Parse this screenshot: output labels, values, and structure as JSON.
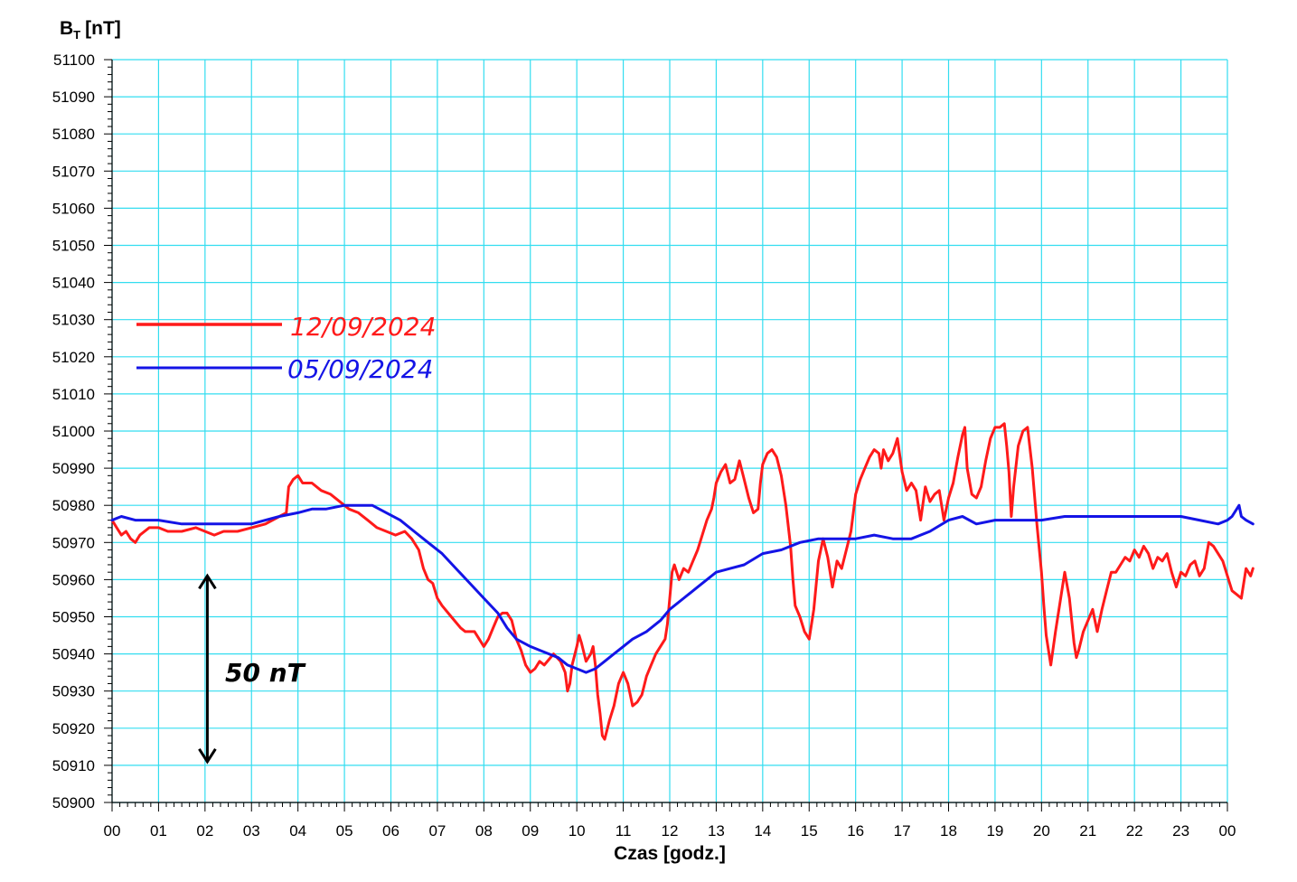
{
  "chart_data": {
    "type": "line",
    "ylabel": "B",
    "ylabel_sub": "T",
    "ylabel_unit": "[nT]",
    "xlabel": "Czas [godz.]",
    "ylim": [
      50900,
      51100
    ],
    "xlim": [
      0,
      24
    ],
    "x_ticks": [
      "00",
      "01",
      "02",
      "03",
      "04",
      "05",
      "06",
      "07",
      "08",
      "09",
      "10",
      "11",
      "12",
      "13",
      "14",
      "15",
      "16",
      "17",
      "18",
      "19",
      "20",
      "21",
      "22",
      "23",
      "00"
    ],
    "y_ticks": [
      50900,
      50910,
      50920,
      50930,
      50940,
      50950,
      50960,
      50970,
      50980,
      50990,
      51000,
      51010,
      51020,
      51030,
      51040,
      51050,
      51060,
      51070,
      51080,
      51090,
      51100
    ],
    "grid": true,
    "legend_position": "upper-left",
    "annotation": {
      "text": "50 nT",
      "y_from": 50911,
      "y_to": 50961,
      "x": 2.05
    },
    "series": [
      {
        "name": "12/09/2024",
        "color": "#ff1a1a",
        "points": [
          [
            0,
            50976
          ],
          [
            0.1,
            50974
          ],
          [
            0.2,
            50972
          ],
          [
            0.3,
            50973
          ],
          [
            0.4,
            50971
          ],
          [
            0.5,
            50970
          ],
          [
            0.6,
            50972
          ],
          [
            0.8,
            50974
          ],
          [
            1.0,
            50974
          ],
          [
            1.2,
            50973
          ],
          [
            1.5,
            50973
          ],
          [
            1.8,
            50974
          ],
          [
            2.0,
            50973
          ],
          [
            2.2,
            50972
          ],
          [
            2.4,
            50973
          ],
          [
            2.7,
            50973
          ],
          [
            3.0,
            50974
          ],
          [
            3.3,
            50975
          ],
          [
            3.6,
            50977
          ],
          [
            3.75,
            50978
          ],
          [
            3.8,
            50985
          ],
          [
            3.9,
            50987
          ],
          [
            4.0,
            50988
          ],
          [
            4.1,
            50986
          ],
          [
            4.3,
            50986
          ],
          [
            4.5,
            50984
          ],
          [
            4.7,
            50983
          ],
          [
            4.9,
            50981
          ],
          [
            5.1,
            50979
          ],
          [
            5.3,
            50978
          ],
          [
            5.5,
            50976
          ],
          [
            5.7,
            50974
          ],
          [
            5.9,
            50973
          ],
          [
            6.1,
            50972
          ],
          [
            6.3,
            50973
          ],
          [
            6.45,
            50971
          ],
          [
            6.6,
            50968
          ],
          [
            6.7,
            50963
          ],
          [
            6.8,
            50960
          ],
          [
            6.9,
            50959
          ],
          [
            7.0,
            50955
          ],
          [
            7.1,
            50953
          ],
          [
            7.3,
            50950
          ],
          [
            7.5,
            50947
          ],
          [
            7.6,
            50946
          ],
          [
            7.8,
            50946
          ],
          [
            7.9,
            50944
          ],
          [
            8.0,
            50942
          ],
          [
            8.1,
            50944
          ],
          [
            8.2,
            50947
          ],
          [
            8.3,
            50950
          ],
          [
            8.4,
            50951
          ],
          [
            8.5,
            50951
          ],
          [
            8.6,
            50949
          ],
          [
            8.7,
            50944
          ],
          [
            8.8,
            50941
          ],
          [
            8.9,
            50937
          ],
          [
            9.0,
            50935
          ],
          [
            9.1,
            50936
          ],
          [
            9.2,
            50938
          ],
          [
            9.3,
            50937
          ],
          [
            9.5,
            50940
          ],
          [
            9.65,
            50938
          ],
          [
            9.75,
            50935
          ],
          [
            9.8,
            50930
          ],
          [
            9.85,
            50932
          ],
          [
            9.9,
            50937
          ],
          [
            10.0,
            50942
          ],
          [
            10.05,
            50945
          ],
          [
            10.1,
            50943
          ],
          [
            10.2,
            50938
          ],
          [
            10.3,
            50940
          ],
          [
            10.35,
            50942
          ],
          [
            10.4,
            50937
          ],
          [
            10.45,
            50929
          ],
          [
            10.5,
            50924
          ],
          [
            10.55,
            50918
          ],
          [
            10.6,
            50917
          ],
          [
            10.7,
            50922
          ],
          [
            10.8,
            50926
          ],
          [
            10.9,
            50932
          ],
          [
            11.0,
            50935
          ],
          [
            11.1,
            50932
          ],
          [
            11.2,
            50926
          ],
          [
            11.3,
            50927
          ],
          [
            11.4,
            50929
          ],
          [
            11.5,
            50934
          ],
          [
            11.6,
            50937
          ],
          [
            11.7,
            50940
          ],
          [
            11.8,
            50942
          ],
          [
            11.9,
            50944
          ],
          [
            11.95,
            50948
          ],
          [
            12.0,
            50955
          ],
          [
            12.05,
            50962
          ],
          [
            12.1,
            50964
          ],
          [
            12.2,
            50960
          ],
          [
            12.3,
            50963
          ],
          [
            12.4,
            50962
          ],
          [
            12.5,
            50965
          ],
          [
            12.6,
            50968
          ],
          [
            12.7,
            50972
          ],
          [
            12.8,
            50976
          ],
          [
            12.9,
            50979
          ],
          [
            12.95,
            50982
          ],
          [
            13.0,
            50986
          ],
          [
            13.1,
            50989
          ],
          [
            13.2,
            50991
          ],
          [
            13.3,
            50986
          ],
          [
            13.4,
            50987
          ],
          [
            13.5,
            50992
          ],
          [
            13.6,
            50987
          ],
          [
            13.7,
            50982
          ],
          [
            13.8,
            50978
          ],
          [
            13.9,
            50979
          ],
          [
            13.95,
            50986
          ],
          [
            14.0,
            50991
          ],
          [
            14.1,
            50994
          ],
          [
            14.2,
            50995
          ],
          [
            14.3,
            50993
          ],
          [
            14.4,
            50988
          ],
          [
            14.5,
            50980
          ],
          [
            14.6,
            50969
          ],
          [
            14.65,
            50960
          ],
          [
            14.7,
            50953
          ],
          [
            14.8,
            50950
          ],
          [
            14.9,
            50946
          ],
          [
            15.0,
            50944
          ],
          [
            15.1,
            50952
          ],
          [
            15.2,
            50965
          ],
          [
            15.3,
            50971
          ],
          [
            15.4,
            50966
          ],
          [
            15.5,
            50958
          ],
          [
            15.6,
            50965
          ],
          [
            15.7,
            50963
          ],
          [
            15.8,
            50968
          ],
          [
            15.9,
            50973
          ],
          [
            16.0,
            50983
          ],
          [
            16.1,
            50987
          ],
          [
            16.2,
            50990
          ],
          [
            16.3,
            50993
          ],
          [
            16.4,
            50995
          ],
          [
            16.5,
            50994
          ],
          [
            16.55,
            50990
          ],
          [
            16.6,
            50995
          ],
          [
            16.7,
            50992
          ],
          [
            16.8,
            50994
          ],
          [
            16.9,
            50998
          ],
          [
            17.0,
            50989
          ],
          [
            17.1,
            50984
          ],
          [
            17.2,
            50986
          ],
          [
            17.3,
            50984
          ],
          [
            17.4,
            50976
          ],
          [
            17.5,
            50985
          ],
          [
            17.6,
            50981
          ],
          [
            17.7,
            50983
          ],
          [
            17.8,
            50984
          ],
          [
            17.9,
            50976
          ],
          [
            18.0,
            50982
          ],
          [
            18.1,
            50986
          ],
          [
            18.2,
            50993
          ],
          [
            18.3,
            50999
          ],
          [
            18.35,
            51001
          ],
          [
            18.4,
            50990
          ],
          [
            18.5,
            50983
          ],
          [
            18.6,
            50982
          ],
          [
            18.7,
            50985
          ],
          [
            18.8,
            50992
          ],
          [
            18.9,
            50998
          ],
          [
            19.0,
            51001
          ],
          [
            19.1,
            51001
          ],
          [
            19.2,
            51002
          ],
          [
            19.25,
            50996
          ],
          [
            19.3,
            50989
          ],
          [
            19.35,
            50977
          ],
          [
            19.4,
            50985
          ],
          [
            19.5,
            50996
          ],
          [
            19.6,
            51000
          ],
          [
            19.7,
            51001
          ],
          [
            19.8,
            50990
          ],
          [
            19.9,
            50975
          ],
          [
            20.0,
            50962
          ],
          [
            20.05,
            50953
          ],
          [
            20.1,
            50945
          ],
          [
            20.2,
            50937
          ],
          [
            20.3,
            50946
          ],
          [
            20.4,
            50954
          ],
          [
            20.5,
            50962
          ],
          [
            20.6,
            50955
          ],
          [
            20.7,
            50943
          ],
          [
            20.75,
            50939
          ],
          [
            20.8,
            50941
          ],
          [
            20.9,
            50946
          ],
          [
            21.0,
            50949
          ],
          [
            21.1,
            50952
          ],
          [
            21.2,
            50946
          ],
          [
            21.3,
            50952
          ],
          [
            21.4,
            50957
          ],
          [
            21.5,
            50962
          ],
          [
            21.6,
            50962
          ],
          [
            21.7,
            50964
          ],
          [
            21.8,
            50966
          ],
          [
            21.9,
            50965
          ],
          [
            22.0,
            50968
          ],
          [
            22.1,
            50966
          ],
          [
            22.2,
            50969
          ],
          [
            22.3,
            50967
          ],
          [
            22.4,
            50963
          ],
          [
            22.5,
            50966
          ],
          [
            22.6,
            50965
          ],
          [
            22.7,
            50967
          ],
          [
            22.8,
            50962
          ],
          [
            22.9,
            50958
          ],
          [
            23.0,
            50962
          ],
          [
            23.1,
            50961
          ],
          [
            23.2,
            50964
          ],
          [
            23.3,
            50965
          ],
          [
            23.4,
            50961
          ],
          [
            23.5,
            50963
          ],
          [
            23.6,
            50970
          ],
          [
            23.7,
            50969
          ],
          [
            23.8,
            50967
          ],
          [
            23.9,
            50965
          ],
          [
            24.0,
            50961
          ],
          [
            24.1,
            50957
          ],
          [
            24.2,
            50956
          ],
          [
            24.3,
            50955
          ],
          [
            24.4,
            50963
          ],
          [
            24.5,
            50961
          ],
          [
            24.55,
            50963
          ]
        ]
      },
      {
        "name": "05/09/2024",
        "color": "#1414e6",
        "points": [
          [
            0,
            50976
          ],
          [
            0.2,
            50977
          ],
          [
            0.5,
            50976
          ],
          [
            1.0,
            50976
          ],
          [
            1.5,
            50975
          ],
          [
            2.0,
            50975
          ],
          [
            2.5,
            50975
          ],
          [
            3.0,
            50975
          ],
          [
            3.3,
            50976
          ],
          [
            3.6,
            50977
          ],
          [
            4.0,
            50978
          ],
          [
            4.3,
            50979
          ],
          [
            4.6,
            50979
          ],
          [
            5.0,
            50980
          ],
          [
            5.3,
            50980
          ],
          [
            5.6,
            50980
          ],
          [
            5.9,
            50978
          ],
          [
            6.2,
            50976
          ],
          [
            6.5,
            50973
          ],
          [
            6.8,
            50970
          ],
          [
            7.1,
            50967
          ],
          [
            7.4,
            50963
          ],
          [
            7.7,
            50959
          ],
          [
            8.0,
            50955
          ],
          [
            8.3,
            50951
          ],
          [
            8.5,
            50947
          ],
          [
            8.7,
            50944
          ],
          [
            9.0,
            50942
          ],
          [
            9.2,
            50941
          ],
          [
            9.4,
            50940
          ],
          [
            9.6,
            50939
          ],
          [
            9.8,
            50937
          ],
          [
            10.0,
            50936
          ],
          [
            10.2,
            50935
          ],
          [
            10.4,
            50936
          ],
          [
            10.6,
            50938
          ],
          [
            10.8,
            50940
          ],
          [
            11.0,
            50942
          ],
          [
            11.2,
            50944
          ],
          [
            11.5,
            50946
          ],
          [
            11.8,
            50949
          ],
          [
            12.0,
            50952
          ],
          [
            12.3,
            50955
          ],
          [
            12.6,
            50958
          ],
          [
            13.0,
            50962
          ],
          [
            13.3,
            50963
          ],
          [
            13.6,
            50964
          ],
          [
            14.0,
            50967
          ],
          [
            14.4,
            50968
          ],
          [
            14.8,
            50970
          ],
          [
            15.2,
            50971
          ],
          [
            15.6,
            50971
          ],
          [
            16.0,
            50971
          ],
          [
            16.4,
            50972
          ],
          [
            16.8,
            50971
          ],
          [
            17.2,
            50971
          ],
          [
            17.6,
            50973
          ],
          [
            18.0,
            50976
          ],
          [
            18.3,
            50977
          ],
          [
            18.6,
            50975
          ],
          [
            19.0,
            50976
          ],
          [
            19.5,
            50976
          ],
          [
            20.0,
            50976
          ],
          [
            20.5,
            50977
          ],
          [
            21.0,
            50977
          ],
          [
            21.5,
            50977
          ],
          [
            22.0,
            50977
          ],
          [
            22.5,
            50977
          ],
          [
            23.0,
            50977
          ],
          [
            23.4,
            50976
          ],
          [
            23.8,
            50975
          ],
          [
            24.0,
            50976
          ],
          [
            24.1,
            50977
          ],
          [
            24.2,
            50979
          ],
          [
            24.25,
            50980
          ],
          [
            24.3,
            50977
          ],
          [
            24.4,
            50976
          ],
          [
            24.55,
            50975
          ]
        ]
      }
    ]
  }
}
